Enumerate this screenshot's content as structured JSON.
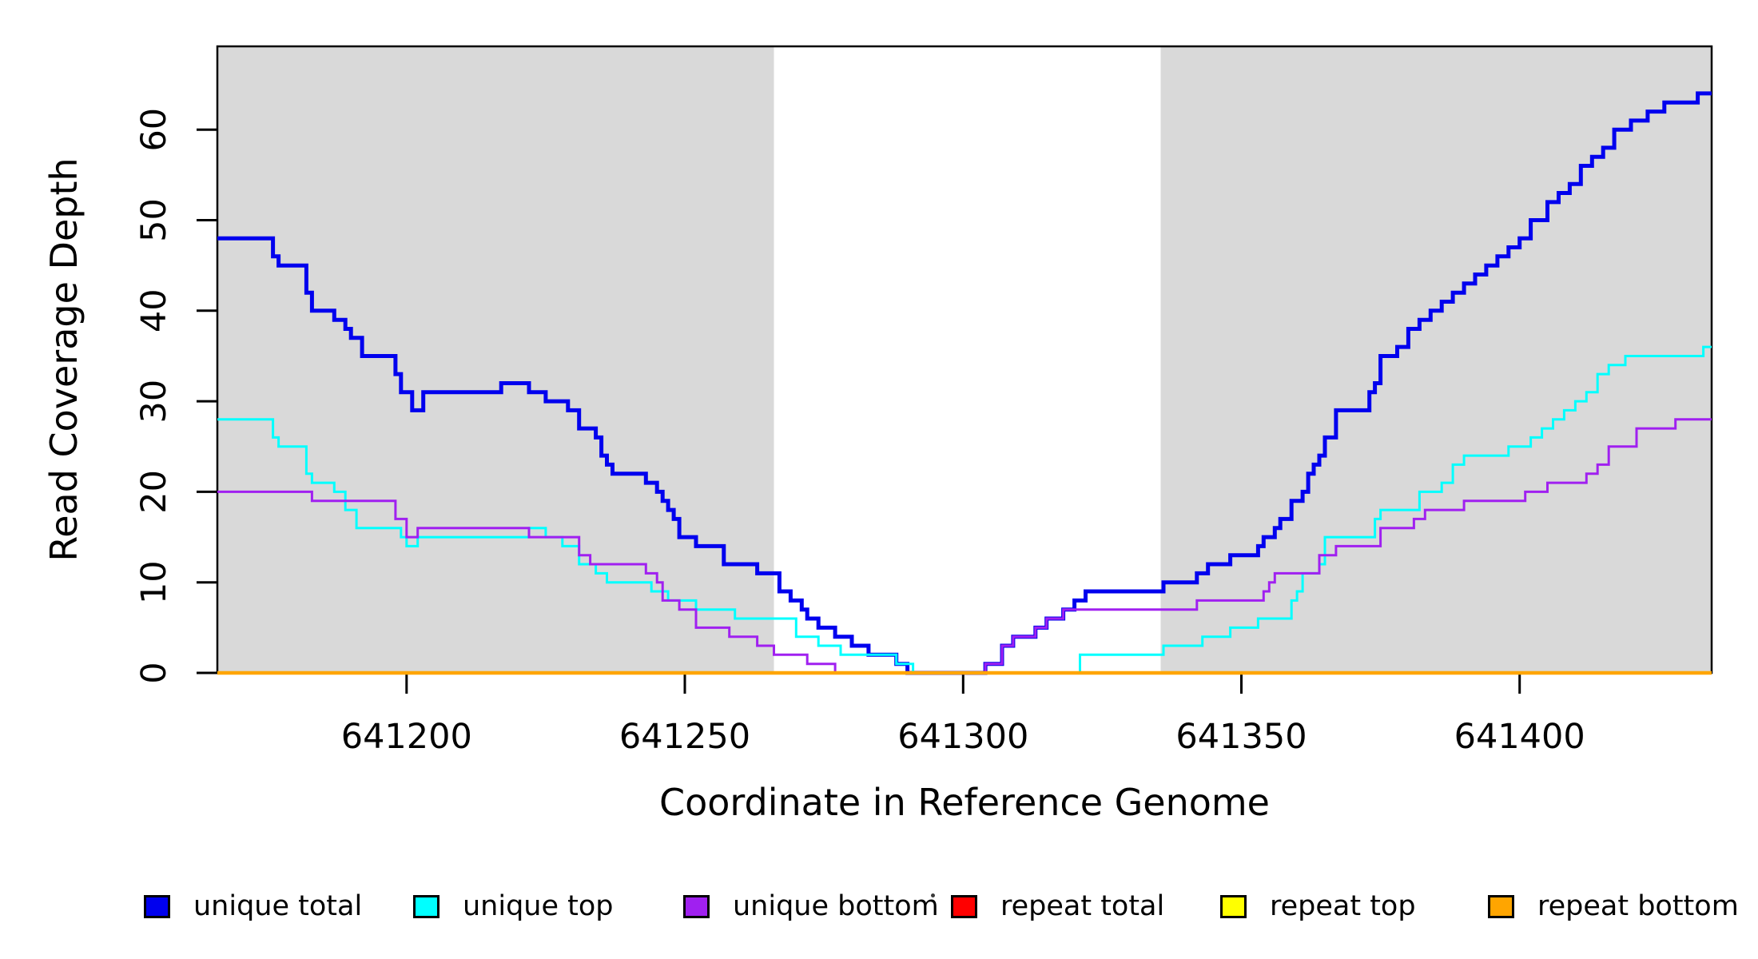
{
  "figure": {
    "background": "#FFFFFF",
    "plot_background": "#FFFFFF",
    "border_color": "#000000"
  },
  "chart_data": {
    "type": "line",
    "step": true,
    "title": "",
    "xlabel": "Coordinate in Reference Genome",
    "ylabel": "Read Coverage Depth",
    "xlim": [
      641166,
      641434.5
    ],
    "ylim": [
      0,
      69.2
    ],
    "x_ticks": [
      641200,
      641250,
      641300,
      641350,
      641400
    ],
    "y_ticks": [
      0,
      10,
      20,
      30,
      40,
      50,
      60
    ],
    "grid": false,
    "shaded_regions": [
      {
        "from": 641166,
        "to": 641266,
        "color": "#D9D9D9"
      },
      {
        "from": 641335.5,
        "to": 641434.5,
        "color": "#D9D9D9"
      }
    ],
    "series": [
      {
        "name": "unique total",
        "color": "#0000EE",
        "width": 5,
        "points": [
          [
            641166,
            48
          ],
          [
            641176,
            46
          ],
          [
            641177,
            45
          ],
          [
            641182,
            42
          ],
          [
            641183,
            40
          ],
          [
            641187,
            39
          ],
          [
            641189,
            38
          ],
          [
            641190,
            37
          ],
          [
            641192,
            35
          ],
          [
            641198,
            33
          ],
          [
            641199,
            31
          ],
          [
            641201,
            29
          ],
          [
            641203,
            31
          ],
          [
            641217,
            32
          ],
          [
            641222,
            31
          ],
          [
            641225,
            30
          ],
          [
            641229,
            29
          ],
          [
            641231,
            27
          ],
          [
            641234,
            26
          ],
          [
            641235,
            24
          ],
          [
            641236,
            23
          ],
          [
            641237,
            22
          ],
          [
            641243,
            21
          ],
          [
            641245,
            20
          ],
          [
            641246,
            19
          ],
          [
            641247,
            18
          ],
          [
            641248,
            17
          ],
          [
            641249,
            15
          ],
          [
            641252,
            14
          ],
          [
            641257,
            12
          ],
          [
            641263,
            11
          ],
          [
            641267,
            9
          ],
          [
            641269,
            8
          ],
          [
            641271,
            7
          ],
          [
            641272,
            6
          ],
          [
            641274,
            5
          ],
          [
            641277,
            4
          ],
          [
            641280,
            3
          ],
          [
            641283,
            2
          ],
          [
            641288,
            1
          ],
          [
            641290,
            0
          ],
          [
            641304,
            1
          ],
          [
            641307,
            3
          ],
          [
            641309,
            4
          ],
          [
            641313,
            5
          ],
          [
            641315,
            6
          ],
          [
            641318,
            7
          ],
          [
            641320,
            8
          ],
          [
            641322,
            9
          ],
          [
            641336,
            10
          ],
          [
            641342,
            11
          ],
          [
            641344,
            12
          ],
          [
            641348,
            13
          ],
          [
            641353,
            14
          ],
          [
            641354,
            15
          ],
          [
            641356,
            16
          ],
          [
            641357,
            17
          ],
          [
            641359,
            19
          ],
          [
            641361,
            20
          ],
          [
            641362,
            22
          ],
          [
            641363,
            23
          ],
          [
            641364,
            24
          ],
          [
            641365,
            26
          ],
          [
            641367,
            29
          ],
          [
            641373,
            31
          ],
          [
            641374,
            32
          ],
          [
            641375,
            35
          ],
          [
            641378,
            36
          ],
          [
            641380,
            38
          ],
          [
            641382,
            39
          ],
          [
            641384,
            40
          ],
          [
            641386,
            41
          ],
          [
            641388,
            42
          ],
          [
            641390,
            43
          ],
          [
            641392,
            44
          ],
          [
            641394,
            45
          ],
          [
            641396,
            46
          ],
          [
            641398,
            47
          ],
          [
            641400,
            48
          ],
          [
            641402,
            50
          ],
          [
            641405,
            52
          ],
          [
            641407,
            53
          ],
          [
            641409,
            54
          ],
          [
            641411,
            56
          ],
          [
            641413,
            57
          ],
          [
            641415,
            58
          ],
          [
            641417,
            60
          ],
          [
            641420,
            61
          ],
          [
            641423,
            62
          ],
          [
            641426,
            63
          ],
          [
            641432,
            64
          ]
        ]
      },
      {
        "name": "unique top",
        "color": "#00FFFF",
        "width": 3,
        "points": [
          [
            641166,
            28
          ],
          [
            641176,
            26
          ],
          [
            641177,
            25
          ],
          [
            641182,
            22
          ],
          [
            641183,
            21
          ],
          [
            641187,
            20
          ],
          [
            641189,
            18
          ],
          [
            641191,
            16
          ],
          [
            641199,
            15
          ],
          [
            641200,
            14
          ],
          [
            641202,
            15
          ],
          [
            641222,
            16
          ],
          [
            641225,
            15
          ],
          [
            641228,
            14
          ],
          [
            641231,
            12
          ],
          [
            641234,
            11
          ],
          [
            641236,
            10
          ],
          [
            641244,
            9
          ],
          [
            641247,
            8
          ],
          [
            641252,
            7
          ],
          [
            641259,
            6
          ],
          [
            641270,
            4
          ],
          [
            641274,
            3
          ],
          [
            641278,
            2
          ],
          [
            641288,
            1
          ],
          [
            641291,
            0
          ],
          [
            641321,
            2
          ],
          [
            641336,
            3
          ],
          [
            641343,
            4
          ],
          [
            641348,
            5
          ],
          [
            641353,
            6
          ],
          [
            641359,
            8
          ],
          [
            641360,
            9
          ],
          [
            641361,
            11
          ],
          [
            641364,
            12
          ],
          [
            641365,
            15
          ],
          [
            641374,
            17
          ],
          [
            641375,
            18
          ],
          [
            641382,
            20
          ],
          [
            641386,
            21
          ],
          [
            641388,
            23
          ],
          [
            641390,
            24
          ],
          [
            641398,
            25
          ],
          [
            641402,
            26
          ],
          [
            641404,
            27
          ],
          [
            641406,
            28
          ],
          [
            641408,
            29
          ],
          [
            641410,
            30
          ],
          [
            641412,
            31
          ],
          [
            641414,
            33
          ],
          [
            641416,
            34
          ],
          [
            641419,
            35
          ],
          [
            641433,
            36
          ]
        ]
      },
      {
        "name": "unique bottom",
        "color": "#A020F0",
        "width": 3,
        "points": [
          [
            641166,
            20
          ],
          [
            641183,
            19
          ],
          [
            641198,
            17
          ],
          [
            641200,
            15
          ],
          [
            641202,
            16
          ],
          [
            641222,
            15
          ],
          [
            641231,
            13
          ],
          [
            641233,
            12
          ],
          [
            641243,
            11
          ],
          [
            641245,
            10
          ],
          [
            641246,
            8
          ],
          [
            641249,
            7
          ],
          [
            641252,
            5
          ],
          [
            641258,
            4
          ],
          [
            641263,
            3
          ],
          [
            641266,
            2
          ],
          [
            641272,
            1
          ],
          [
            641277,
            0
          ],
          [
            641304,
            1
          ],
          [
            641307,
            3
          ],
          [
            641309,
            4
          ],
          [
            641313,
            5
          ],
          [
            641315,
            6
          ],
          [
            641318,
            7
          ],
          [
            641342,
            8
          ],
          [
            641354,
            9
          ],
          [
            641355,
            10
          ],
          [
            641356,
            11
          ],
          [
            641364,
            13
          ],
          [
            641367,
            14
          ],
          [
            641375,
            16
          ],
          [
            641381,
            17
          ],
          [
            641383,
            18
          ],
          [
            641390,
            19
          ],
          [
            641401,
            20
          ],
          [
            641405,
            21
          ],
          [
            641412,
            22
          ],
          [
            641414,
            23
          ],
          [
            641416,
            25
          ],
          [
            641421,
            27
          ],
          [
            641428,
            28
          ]
        ]
      },
      {
        "name": "repeat total",
        "color": "#FF0000",
        "width": 3,
        "points": [
          [
            641166,
            0
          ]
        ]
      },
      {
        "name": "repeat top",
        "color": "#FFFF00",
        "width": 3,
        "points": [
          [
            641166,
            0
          ]
        ]
      },
      {
        "name": "repeat bottom",
        "color": "#FFA500",
        "width": 4.5,
        "points": [
          [
            641166,
            0
          ]
        ]
      }
    ],
    "legend": {
      "position": "bottom",
      "items": [
        {
          "label": "unique total",
          "color": "#0000EE"
        },
        {
          "label": "unique top",
          "color": "#00FFFF"
        },
        {
          "label": "unique bottom",
          "color": "#A020F0"
        },
        {
          "label": "repeat total",
          "color": "#FF0000"
        },
        {
          "label": "repeat top",
          "color": "#FFFF00"
        },
        {
          "label": "repeat bottom",
          "color": "#FFA500"
        }
      ]
    }
  }
}
